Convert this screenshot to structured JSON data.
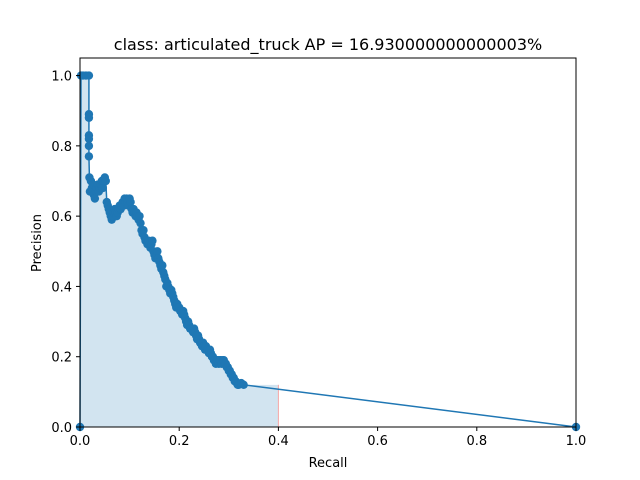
{
  "chart_data": {
    "type": "line",
    "title": "class: articulated_truck AP = 16.930000000000003%",
    "xlabel": "Recall",
    "ylabel": "Precision",
    "xlim": [
      0.0,
      1.0
    ],
    "ylim": [
      0.0,
      1.05
    ],
    "x_ticks": [
      "0.0",
      "0.2",
      "0.4",
      "0.6",
      "0.8",
      "1.0"
    ],
    "y_ticks": [
      "0.0",
      "0.2",
      "0.4",
      "0.6",
      "0.8",
      "1.0"
    ],
    "grid": false,
    "colors": {
      "line": "#1f77b4",
      "fill": "#1f77b4",
      "vline": "#f4a6a6"
    },
    "series": [
      {
        "values_xy": [
          [
            0.0,
            0.0
          ],
          [
            0.002,
            1.0
          ],
          [
            0.006,
            1.0
          ],
          [
            0.012,
            1.0
          ],
          [
            0.018,
            1.0
          ],
          [
            0.018,
            0.89
          ],
          [
            0.018,
            0.88
          ],
          [
            0.018,
            0.83
          ],
          [
            0.018,
            0.82
          ],
          [
            0.018,
            0.8
          ],
          [
            0.018,
            0.77
          ],
          [
            0.019,
            0.71
          ],
          [
            0.02,
            0.67
          ],
          [
            0.022,
            0.7
          ],
          [
            0.024,
            0.68
          ],
          [
            0.026,
            0.69
          ],
          [
            0.028,
            0.66
          ],
          [
            0.03,
            0.65
          ],
          [
            0.032,
            0.67
          ],
          [
            0.034,
            0.68
          ],
          [
            0.036,
            0.69
          ],
          [
            0.038,
            0.67
          ],
          [
            0.04,
            0.68
          ],
          [
            0.042,
            0.69
          ],
          [
            0.044,
            0.7
          ],
          [
            0.046,
            0.68
          ],
          [
            0.048,
            0.7
          ],
          [
            0.05,
            0.71
          ],
          [
            0.052,
            0.7
          ],
          [
            0.054,
            0.64
          ],
          [
            0.056,
            0.63
          ],
          [
            0.058,
            0.62
          ],
          [
            0.06,
            0.61
          ],
          [
            0.062,
            0.6
          ],
          [
            0.064,
            0.59
          ],
          [
            0.066,
            0.6
          ],
          [
            0.068,
            0.61
          ],
          [
            0.07,
            0.62
          ],
          [
            0.072,
            0.61
          ],
          [
            0.074,
            0.6
          ],
          [
            0.076,
            0.61
          ],
          [
            0.078,
            0.62
          ],
          [
            0.08,
            0.63
          ],
          [
            0.082,
            0.62
          ],
          [
            0.084,
            0.63
          ],
          [
            0.086,
            0.64
          ],
          [
            0.088,
            0.63
          ],
          [
            0.09,
            0.65
          ],
          [
            0.092,
            0.64
          ],
          [
            0.094,
            0.65
          ],
          [
            0.096,
            0.64
          ],
          [
            0.098,
            0.63
          ],
          [
            0.1,
            0.65
          ],
          [
            0.102,
            0.64
          ],
          [
            0.104,
            0.62
          ],
          [
            0.106,
            0.61
          ],
          [
            0.108,
            0.62
          ],
          [
            0.11,
            0.61
          ],
          [
            0.112,
            0.6
          ],
          [
            0.114,
            0.61
          ],
          [
            0.116,
            0.6
          ],
          [
            0.118,
            0.59
          ],
          [
            0.12,
            0.6
          ],
          [
            0.122,
            0.58
          ],
          [
            0.124,
            0.56
          ],
          [
            0.126,
            0.55
          ],
          [
            0.128,
            0.56
          ],
          [
            0.13,
            0.54
          ],
          [
            0.132,
            0.53
          ],
          [
            0.134,
            0.53
          ],
          [
            0.136,
            0.52
          ],
          [
            0.138,
            0.53
          ],
          [
            0.14,
            0.52
          ],
          [
            0.142,
            0.51
          ],
          [
            0.144,
            0.52
          ],
          [
            0.146,
            0.53
          ],
          [
            0.148,
            0.5
          ],
          [
            0.15,
            0.49
          ],
          [
            0.152,
            0.48
          ],
          [
            0.154,
            0.49
          ],
          [
            0.156,
            0.5
          ],
          [
            0.158,
            0.48
          ],
          [
            0.16,
            0.47
          ],
          [
            0.162,
            0.46
          ],
          [
            0.164,
            0.45
          ],
          [
            0.166,
            0.46
          ],
          [
            0.168,
            0.44
          ],
          [
            0.17,
            0.43
          ],
          [
            0.172,
            0.42
          ],
          [
            0.174,
            0.4
          ],
          [
            0.176,
            0.41
          ],
          [
            0.178,
            0.4
          ],
          [
            0.18,
            0.39
          ],
          [
            0.182,
            0.38
          ],
          [
            0.184,
            0.39
          ],
          [
            0.186,
            0.38
          ],
          [
            0.188,
            0.37
          ],
          [
            0.19,
            0.36
          ],
          [
            0.192,
            0.35
          ],
          [
            0.194,
            0.34
          ],
          [
            0.196,
            0.35
          ],
          [
            0.198,
            0.34
          ],
          [
            0.2,
            0.34
          ],
          [
            0.202,
            0.33
          ],
          [
            0.204,
            0.33
          ],
          [
            0.206,
            0.32
          ],
          [
            0.208,
            0.33
          ],
          [
            0.21,
            0.32
          ],
          [
            0.212,
            0.31
          ],
          [
            0.214,
            0.3
          ],
          [
            0.216,
            0.29
          ],
          [
            0.218,
            0.3
          ],
          [
            0.22,
            0.29
          ],
          [
            0.222,
            0.28
          ],
          [
            0.224,
            0.28
          ],
          [
            0.226,
            0.28
          ],
          [
            0.228,
            0.27
          ],
          [
            0.23,
            0.28
          ],
          [
            0.232,
            0.27
          ],
          [
            0.234,
            0.26
          ],
          [
            0.236,
            0.25
          ],
          [
            0.238,
            0.26
          ],
          [
            0.24,
            0.25
          ],
          [
            0.242,
            0.24
          ],
          [
            0.244,
            0.24
          ],
          [
            0.246,
            0.23
          ],
          [
            0.248,
            0.24
          ],
          [
            0.25,
            0.23
          ],
          [
            0.252,
            0.22
          ],
          [
            0.254,
            0.23
          ],
          [
            0.256,
            0.22
          ],
          [
            0.258,
            0.22
          ],
          [
            0.26,
            0.21
          ],
          [
            0.262,
            0.22
          ],
          [
            0.264,
            0.21
          ],
          [
            0.266,
            0.2
          ],
          [
            0.268,
            0.2
          ],
          [
            0.27,
            0.19
          ],
          [
            0.272,
            0.19
          ],
          [
            0.274,
            0.18
          ],
          [
            0.276,
            0.19
          ],
          [
            0.278,
            0.19
          ],
          [
            0.28,
            0.18
          ],
          [
            0.282,
            0.19
          ],
          [
            0.284,
            0.19
          ],
          [
            0.286,
            0.18
          ],
          [
            0.288,
            0.19
          ],
          [
            0.29,
            0.19
          ],
          [
            0.292,
            0.18
          ],
          [
            0.294,
            0.18
          ],
          [
            0.296,
            0.17
          ],
          [
            0.298,
            0.17
          ],
          [
            0.3,
            0.16
          ],
          [
            0.302,
            0.16
          ],
          [
            0.304,
            0.15
          ],
          [
            0.306,
            0.15
          ],
          [
            0.308,
            0.14
          ],
          [
            0.31,
            0.14
          ],
          [
            0.312,
            0.13
          ],
          [
            0.314,
            0.13
          ],
          [
            0.316,
            0.125
          ],
          [
            0.318,
            0.12
          ],
          [
            0.32,
            0.12
          ],
          [
            0.325,
            0.125
          ],
          [
            0.33,
            0.12
          ],
          [
            1.0,
            0.0
          ]
        ]
      }
    ],
    "vline_x": 0.4
  }
}
